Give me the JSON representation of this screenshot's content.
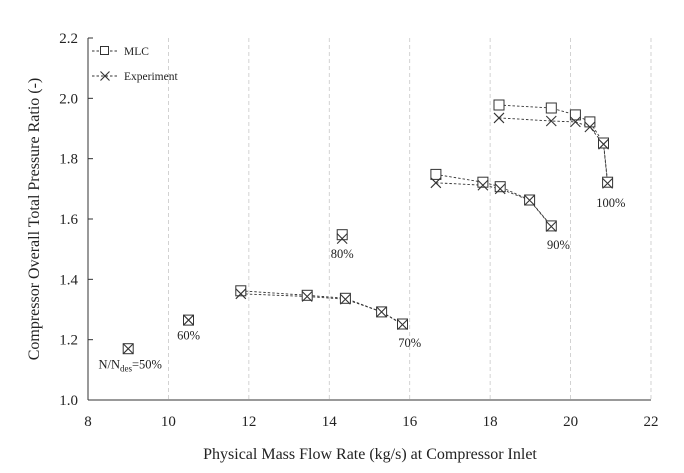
{
  "chart_data": {
    "type": "line",
    "title": "",
    "xlabel": "Physical Mass Flow Rate (kg/s) at Compressor Inlet",
    "ylabel": "Compressor Overall Total Pressure Ratio (-)",
    "xlim": [
      8,
      22
    ],
    "ylim": [
      1.0,
      2.2
    ],
    "xticks": [
      "8",
      "10",
      "12",
      "14",
      "16",
      "18",
      "20",
      "22"
    ],
    "yticks": [
      "1.0",
      "1.2",
      "1.4",
      "1.6",
      "1.8",
      "2.0",
      "2.2"
    ],
    "grid": "vertical dashed",
    "legend_position": "top-left",
    "series": [
      {
        "name": "MLC",
        "marker": "square",
        "lines": [
          [
            [
              9.0,
              1.17
            ]
          ],
          [
            [
              10.5,
              1.265
            ]
          ],
          [
            [
              11.8,
              1.362
            ],
            [
              13.45,
              1.347
            ],
            [
              14.4,
              1.337
            ],
            [
              15.3,
              1.292
            ],
            [
              15.82,
              1.252
            ]
          ],
          [
            [
              14.32,
              1.548
            ]
          ],
          [
            [
              16.65,
              1.748
            ],
            [
              17.82,
              1.722
            ],
            [
              18.25,
              1.707
            ],
            [
              18.98,
              1.663
            ],
            [
              19.52,
              1.577
            ]
          ],
          [
            [
              18.22,
              1.978
            ],
            [
              19.52,
              1.968
            ],
            [
              20.12,
              1.945
            ],
            [
              20.48,
              1.922
            ],
            [
              20.82,
              1.852
            ],
            [
              20.92,
              1.722
            ]
          ]
        ]
      },
      {
        "name": "Experiment",
        "marker": "x",
        "lines": [
          [
            [
              9.0,
              1.17
            ]
          ],
          [
            [
              10.5,
              1.265
            ]
          ],
          [
            [
              11.8,
              1.352
            ],
            [
              13.45,
              1.343
            ],
            [
              14.4,
              1.334
            ],
            [
              15.3,
              1.292
            ],
            [
              15.82,
              1.25
            ]
          ],
          [
            [
              14.32,
              1.535
            ]
          ],
          [
            [
              16.65,
              1.72
            ],
            [
              17.82,
              1.712
            ],
            [
              18.25,
              1.7
            ],
            [
              18.98,
              1.662
            ],
            [
              19.52,
              1.575
            ]
          ],
          [
            [
              18.22,
              1.935
            ],
            [
              19.52,
              1.925
            ],
            [
              20.12,
              1.922
            ],
            [
              20.48,
              1.905
            ],
            [
              20.82,
              1.848
            ],
            [
              20.92,
              1.718
            ]
          ]
        ]
      }
    ],
    "annotations": [
      {
        "text": "N/N",
        "sub": "des",
        "suffix": "=50%",
        "x": 9.05,
        "y": 1.105
      },
      {
        "text": "60%",
        "x": 10.5,
        "y": 1.2
      },
      {
        "text": "70%",
        "x": 16.0,
        "y": 1.175
      },
      {
        "text": "80%",
        "x": 14.32,
        "y": 1.47
      },
      {
        "text": "90%",
        "x": 19.7,
        "y": 1.5
      },
      {
        "text": "100%",
        "x": 21.0,
        "y": 1.64
      }
    ]
  }
}
